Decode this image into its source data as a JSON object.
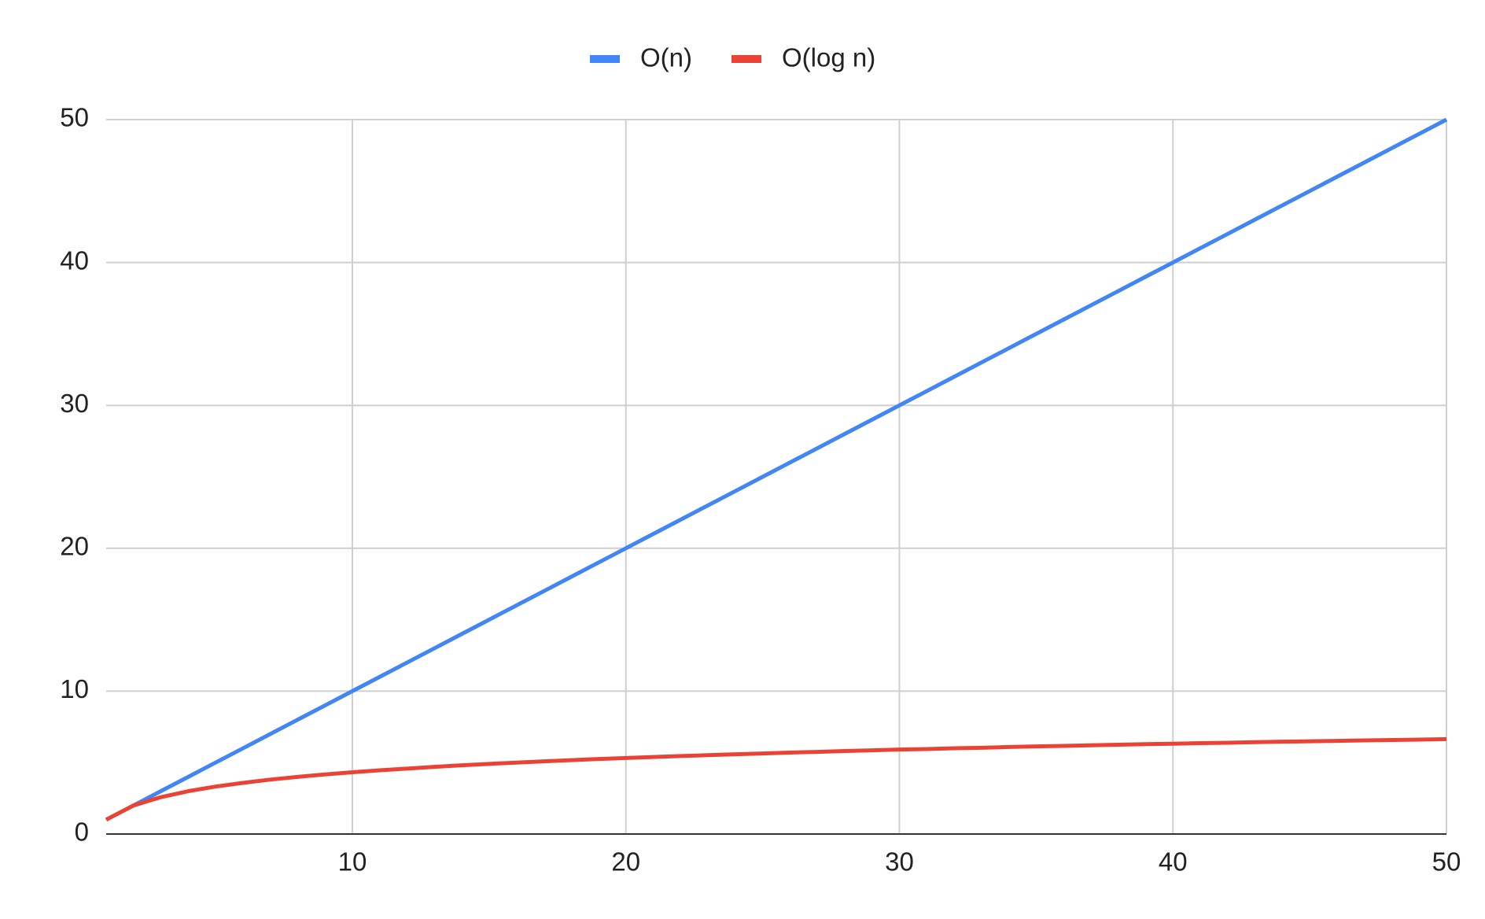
{
  "chart_data": {
    "type": "line",
    "x": [
      1,
      2,
      3,
      4,
      5,
      6,
      7,
      8,
      9,
      10,
      11,
      12,
      13,
      14,
      15,
      16,
      17,
      18,
      19,
      20,
      21,
      22,
      23,
      24,
      25,
      26,
      27,
      28,
      29,
      30,
      31,
      32,
      33,
      34,
      35,
      36,
      37,
      38,
      39,
      40,
      41,
      42,
      43,
      44,
      45,
      46,
      47,
      48,
      49,
      50
    ],
    "series": [
      {
        "name": "O(n)",
        "color": "#4285f4",
        "values": [
          1,
          2,
          3,
          4,
          5,
          6,
          7,
          8,
          9,
          10,
          11,
          12,
          13,
          14,
          15,
          16,
          17,
          18,
          19,
          20,
          21,
          22,
          23,
          24,
          25,
          26,
          27,
          28,
          29,
          30,
          31,
          32,
          33,
          34,
          35,
          36,
          37,
          38,
          39,
          40,
          41,
          42,
          43,
          44,
          45,
          46,
          47,
          48,
          49,
          50
        ]
      },
      {
        "name": "O(log n)",
        "color": "#ea4335",
        "values": [
          1.0,
          2.0,
          2.58,
          3.0,
          3.32,
          3.58,
          3.81,
          4.0,
          4.17,
          4.32,
          4.46,
          4.58,
          4.7,
          4.81,
          4.91,
          5.0,
          5.09,
          5.17,
          5.25,
          5.32,
          5.39,
          5.46,
          5.52,
          5.58,
          5.64,
          5.7,
          5.75,
          5.81,
          5.86,
          5.91,
          5.95,
          6.0,
          6.04,
          6.09,
          6.13,
          6.17,
          6.21,
          6.25,
          6.29,
          6.32,
          6.36,
          6.39,
          6.43,
          6.46,
          6.49,
          6.52,
          6.55,
          6.58,
          6.61,
          6.64
        ]
      }
    ],
    "xlim": [
      1,
      50
    ],
    "xticks": [
      10,
      20,
      30,
      40,
      50
    ],
    "ylim": [
      0,
      50
    ],
    "yticks": [
      0,
      10,
      20,
      30,
      40,
      50
    ],
    "grid": true,
    "legend": "top"
  }
}
